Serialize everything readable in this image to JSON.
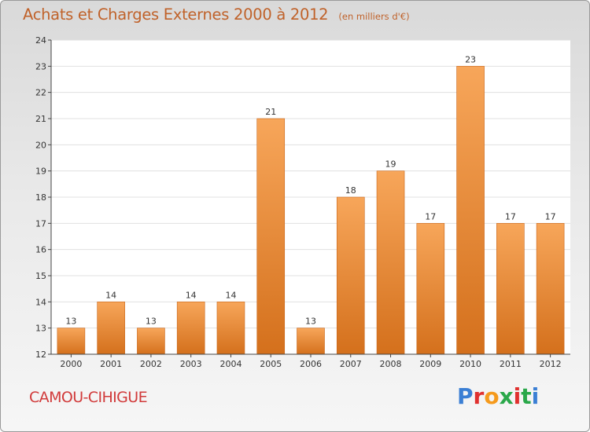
{
  "header": {
    "title": "Achats et Charges Externes 2000 à 2012",
    "unit": "(en milliers d'€)"
  },
  "footer": {
    "town": "CAMOU-CIHIGUE",
    "brand": "Proxiti",
    "brand_colors": [
      "#3b7fd4",
      "#e0312f",
      "#f59a1c",
      "#2aa84a",
      "#e0312f",
      "#2aa84a",
      "#3b7fd4"
    ]
  },
  "colors": {
    "bar_top": "#f7a65a",
    "bar_bottom": "#d4701c",
    "title": "#c0622a",
    "town": "#d13a3a",
    "grid": "#e0e0e0",
    "axis": "#444444"
  },
  "chart_data": {
    "type": "bar",
    "categories": [
      "2000",
      "2001",
      "2002",
      "2003",
      "2004",
      "2005",
      "2006",
      "2007",
      "2008",
      "2009",
      "2010",
      "2011",
      "2012"
    ],
    "values": [
      13,
      14,
      13,
      14,
      14,
      21,
      13,
      18,
      19,
      17,
      23,
      17,
      17
    ],
    "ylim": [
      12,
      24
    ],
    "yticks": [
      12,
      13,
      14,
      15,
      16,
      17,
      18,
      19,
      20,
      21,
      22,
      23,
      24
    ],
    "grid": true,
    "xlabel": "",
    "ylabel": ""
  }
}
